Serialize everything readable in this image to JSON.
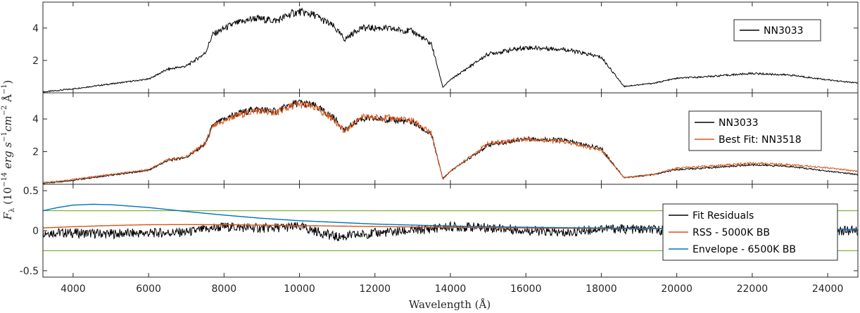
{
  "chart_data": {
    "type": "line",
    "xlabel": "Wavelength (Å)",
    "ylabel_tex": "F_λ (10^-14 erg s^-1 cm^-2 Å^-1)",
    "xlim": [
      3200,
      24800
    ],
    "xticks": [
      4000,
      6000,
      8000,
      10000,
      12000,
      14000,
      16000,
      18000,
      20000,
      22000,
      24000
    ],
    "colors": {
      "observed": "#000000",
      "fit": "#d95319",
      "masked": "#808080",
      "envelope": "#0072bd",
      "threshold": "#77ac30"
    },
    "panels": [
      {
        "id": "spectrum",
        "ylim": [
          0,
          5.6
        ],
        "yticks": [
          2,
          4
        ],
        "legend_position": "top-right",
        "series": [
          {
            "name": "NN3033",
            "color": "#000000",
            "x": [
              3200,
              4000,
              5000,
              6000,
              6500,
              7000,
              7500,
              7700,
              8200,
              8800,
              9400,
              9800,
              10000,
              10400,
              10900,
              11200,
              11600,
              12200,
              13000,
              13500,
              13800,
              14000,
              15000,
              16000,
              17000,
              18000,
              18600,
              19400,
              20000,
              20800,
              22000,
              23000,
              24000,
              24800
            ],
            "y": [
              0.05,
              0.25,
              0.55,
              0.85,
              1.45,
              1.65,
              2.45,
              3.6,
              4.2,
              4.6,
              4.45,
              4.9,
              5.0,
              4.8,
              4.1,
              3.3,
              4.0,
              4.0,
              3.8,
              3.0,
              0.35,
              0.8,
              2.4,
              2.8,
              2.7,
              2.2,
              0.4,
              0.6,
              0.9,
              1.0,
              1.2,
              1.1,
              0.8,
              0.6
            ]
          }
        ]
      },
      {
        "id": "fit",
        "ylim": [
          0,
          5.6
        ],
        "yticks": [
          2,
          4
        ],
        "legend_position": "top-right",
        "series": [
          {
            "name": "NN3033",
            "color": "#000000",
            "x": [
              3200,
              4000,
              5000,
              6000,
              6500,
              7000,
              7500,
              7700,
              8200,
              8800,
              9400,
              9800,
              10000,
              10400,
              10900,
              11200,
              11600,
              12200,
              13000,
              13500,
              13800,
              14000,
              15000,
              16000,
              17000,
              18000,
              18600,
              19400,
              20000,
              20800,
              22000,
              23000,
              24000,
              24800
            ],
            "y": [
              0.05,
              0.25,
              0.55,
              0.85,
              1.45,
              1.65,
              2.45,
              3.6,
              4.2,
              4.6,
              4.45,
              4.9,
              5.0,
              4.8,
              4.1,
              3.3,
              4.0,
              4.0,
              3.8,
              3.0,
              0.35,
              0.8,
              2.4,
              2.8,
              2.7,
              2.2,
              0.4,
              0.6,
              0.9,
              1.0,
              1.2,
              1.1,
              0.8,
              0.6
            ]
          },
          {
            "name": "Best Fit: NN3518",
            "color": "#d95319",
            "x": [
              3200,
              4000,
              5000,
              6000,
              6500,
              7000,
              7500,
              7700,
              8200,
              8800,
              9400,
              9800,
              10000,
              10400,
              10900,
              11200,
              11600,
              12200,
              13000,
              13500,
              13800,
              14000,
              15000,
              16000,
              17000,
              18000,
              18600,
              19400,
              20000,
              20800,
              22000,
              23000,
              24000,
              24800
            ],
            "y": [
              0.1,
              0.3,
              0.6,
              0.9,
              1.5,
              1.7,
              2.5,
              3.5,
              4.1,
              4.5,
              4.4,
              4.8,
              4.9,
              4.7,
              4.0,
              3.2,
              4.1,
              4.1,
              3.9,
              3.1,
              0.3,
              0.8,
              2.5,
              2.8,
              2.6,
              2.1,
              0.4,
              0.6,
              1.0,
              1.1,
              1.3,
              1.2,
              1.0,
              0.8
            ]
          }
        ]
      },
      {
        "id": "residuals",
        "ylim": [
          -0.58,
          0.58
        ],
        "yticks": [
          -0.5,
          0,
          0.5
        ],
        "ytick_labels": [
          "-0.5",
          "0",
          "0.5"
        ],
        "legend_position": "bottom-right",
        "thresholds": [
          0.25,
          -0.25
        ],
        "series": [
          {
            "name": "Fit Residuals",
            "color": "#000000",
            "x": [
              3200,
              5000,
              7000,
              8000,
              9000,
              10000,
              11000,
              12000,
              13000,
              14000,
              15000,
              17000,
              18000,
              20000,
              22000,
              24800
            ],
            "y": [
              -0.02,
              -0.04,
              -0.02,
              0.05,
              0.03,
              0.05,
              -0.08,
              -0.03,
              0.0,
              0.05,
              0.04,
              -0.03,
              0.03,
              0.0,
              0.01,
              0.0
            ]
          },
          {
            "name": "RSS - 5000K BB",
            "color": "#d95319",
            "x": [
              3200,
              4000,
              5000,
              6000,
              7000,
              8000,
              9000,
              10000,
              12000,
              14000,
              16000,
              18000,
              20000,
              22000,
              24000,
              24800
            ],
            "y": [
              0.035,
              0.05,
              0.065,
              0.075,
              0.077,
              0.075,
              0.07,
              0.064,
              0.052,
              0.042,
              0.034,
              0.028,
              0.023,
              0.019,
              0.016,
              0.015
            ]
          },
          {
            "name": "Envelope - 6500K BB",
            "color": "#0072bd",
            "x": [
              3200,
              3600,
              4000,
              4500,
              5000,
              6000,
              7000,
              8000,
              9000,
              10000,
              12000,
              14000,
              16000,
              18000,
              20000,
              22000,
              24000,
              24800
            ],
            "y": [
              0.25,
              0.29,
              0.32,
              0.33,
              0.325,
              0.29,
              0.24,
              0.195,
              0.155,
              0.125,
              0.083,
              0.058,
              0.043,
              0.033,
              0.026,
              0.021,
              0.017,
              0.016
            ]
          }
        ]
      }
    ]
  }
}
